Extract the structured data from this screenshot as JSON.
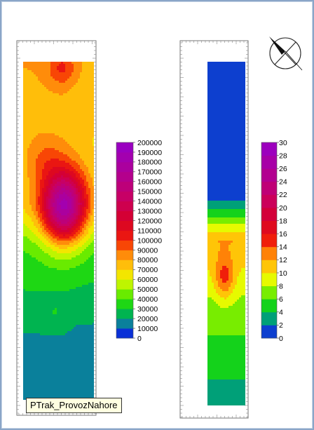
{
  "chart_data": [
    {
      "type": "heatmap",
      "subtype": "filled-contour",
      "colorbar": {
        "min": 0,
        "max": 200000,
        "step": 10000,
        "ticks": [
          0,
          10000,
          20000,
          30000,
          40000,
          50000,
          60000,
          70000,
          80000,
          90000,
          100000,
          110000,
          120000,
          130000,
          140000,
          150000,
          160000,
          170000,
          180000,
          190000,
          200000
        ],
        "tick_labels": [
          "0",
          "10000",
          "20000",
          "30000",
          "40000",
          "50000",
          "60000",
          "70000",
          "80000",
          "90000",
          "100000",
          "110000",
          "120000",
          "130000",
          "140000",
          "150000",
          "160000",
          "170000",
          "180000",
          "190000",
          "200000"
        ]
      },
      "features": [
        {
          "kind": "peak",
          "approx_value": 200000,
          "location": "center-left"
        },
        {
          "kind": "local-max",
          "approx_value": 85000,
          "location": "top"
        },
        {
          "kind": "low",
          "approx_value": 15000,
          "location": "bottom"
        }
      ]
    },
    {
      "type": "heatmap",
      "subtype": "filled-contour",
      "colorbar": {
        "min": 0,
        "max": 30,
        "step": 2,
        "ticks": [
          0,
          2,
          4,
          6,
          8,
          10,
          12,
          14,
          16,
          18,
          20,
          22,
          24,
          26,
          28,
          30
        ],
        "tick_labels": [
          "0",
          "2",
          "4",
          "6",
          "8",
          "10",
          "12",
          "14",
          "16",
          "18",
          "20",
          "22",
          "24",
          "26",
          "28",
          "30"
        ]
      },
      "features": [
        {
          "kind": "peak",
          "approx_value": 13,
          "location": "middle"
        },
        {
          "kind": "plateau",
          "approx_value": 0,
          "location": "top"
        }
      ]
    }
  ],
  "layer_label": "PTrak_ProvozNahore",
  "north_arrow_icon": "north-arrow-icon"
}
